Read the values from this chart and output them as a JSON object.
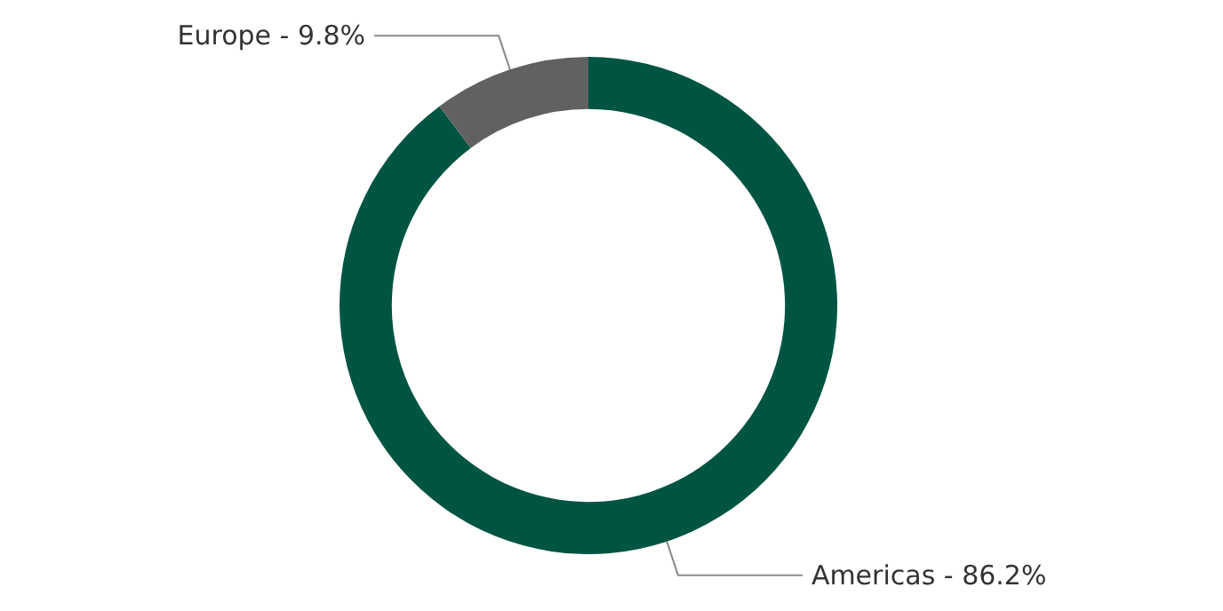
{
  "chart_data": {
    "type": "donut",
    "categories": [
      "Americas",
      "Europe"
    ],
    "values": [
      86.2,
      9.8
    ],
    "value_labels": [
      "86.2%",
      "9.8%"
    ],
    "colors": [
      "#005442",
      "#616161"
    ],
    "legend": false
  }
}
